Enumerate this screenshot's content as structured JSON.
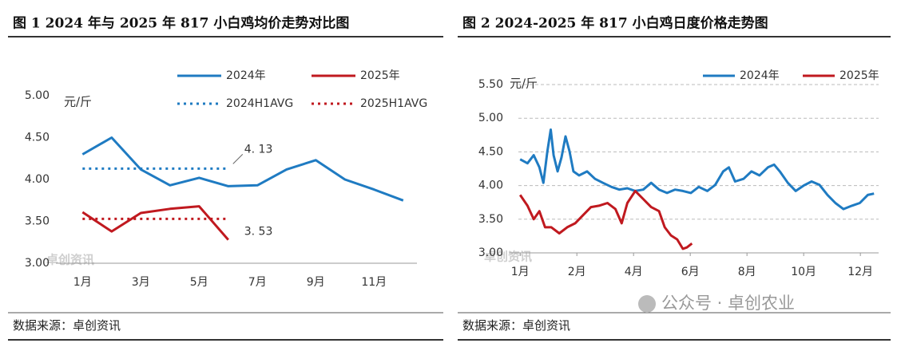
{
  "chart_data": [
    {
      "type": "line",
      "title": "图 1 2024 年与 2025 年 817 小白鸡均价走势对比图",
      "y_label": "元/斤",
      "source": "数据来源：卓创资讯",
      "watermark": "卓创资讯",
      "categories": [
        "1月",
        null,
        "3月",
        null,
        "5月",
        null,
        "7月",
        null,
        "9月",
        null,
        "11月",
        null
      ],
      "series": [
        {
          "name": "2024年",
          "color": "#1f7bc2",
          "style": "solid",
          "values": [
            4.3,
            4.5,
            4.12,
            3.93,
            4.02,
            3.92,
            3.93,
            4.12,
            4.23,
            4.0,
            3.88,
            3.75
          ]
        },
        {
          "name": "2025年",
          "color": "#c0191f",
          "style": "solid",
          "values": [
            3.61,
            3.38,
            3.6,
            3.65,
            3.68,
            3.28,
            null,
            null,
            null,
            null,
            null,
            null
          ]
        },
        {
          "name": "2024H1AVG",
          "color": "#1f7bc2",
          "style": "dotted",
          "values": [
            4.13,
            4.13,
            4.13,
            4.13,
            4.13,
            4.13,
            null,
            null,
            null,
            null,
            null,
            null
          ]
        },
        {
          "name": "2025H1AVG",
          "color": "#c0191f",
          "style": "dotted",
          "values": [
            3.53,
            3.53,
            3.53,
            3.53,
            3.53,
            3.53,
            null,
            null,
            null,
            null,
            null,
            null
          ]
        }
      ],
      "annotations": [
        {
          "text": "4. 13",
          "value": 4.13
        },
        {
          "text": "3. 53",
          "value": 3.53
        }
      ],
      "ylim": [
        3,
        5
      ],
      "yticks": [
        {
          "value": 3,
          "label": "3.00"
        },
        {
          "value": 3.5,
          "label": "3.50"
        },
        {
          "value": 4,
          "label": "4.00"
        },
        {
          "value": 4.5,
          "label": "4.50"
        },
        {
          "value": 5,
          "label": "5.00"
        }
      ],
      "grid": false
    },
    {
      "type": "line",
      "title": "图 2 2024-2025 年 817 小白鸡日度价格走势图",
      "y_label": "元/斤",
      "source": "数据来源：卓创资讯",
      "watermark": "卓创资讯",
      "credit": "公众号 · 卓创农业",
      "series": [
        {
          "name": "2024年",
          "color": "#1f7bc2",
          "style": "solid",
          "x": [
            0,
            0.13,
            0.24,
            0.34,
            0.41,
            0.48,
            0.54,
            0.59,
            0.66,
            0.73,
            0.8,
            0.87,
            0.94,
            1.04,
            1.18,
            1.32,
            1.46,
            1.61,
            1.75,
            1.89,
            2.03,
            2.17,
            2.31,
            2.45,
            2.59,
            2.73,
            2.87,
            3.01,
            3.15,
            3.3,
            3.44,
            3.58,
            3.68,
            3.79,
            3.94,
            4.08,
            4.22,
            4.37,
            4.48,
            4.58,
            4.72,
            4.86,
            5.0,
            5.14,
            5.28,
            5.42,
            5.56,
            5.7,
            5.85,
            5.99,
            6.13,
            6.24
          ],
          "values": [
            4.39,
            4.33,
            4.45,
            4.27,
            4.04,
            4.51,
            4.83,
            4.45,
            4.21,
            4.42,
            4.73,
            4.51,
            4.21,
            4.15,
            4.21,
            4.1,
            4.04,
            3.98,
            3.94,
            3.96,
            3.92,
            3.94,
            4.04,
            3.94,
            3.89,
            3.94,
            3.92,
            3.89,
            3.98,
            3.92,
            4.01,
            4.21,
            4.27,
            4.06,
            4.1,
            4.21,
            4.15,
            4.27,
            4.31,
            4.21,
            4.04,
            3.92,
            4.0,
            4.06,
            4.01,
            3.86,
            3.74,
            3.65,
            3.7,
            3.74,
            3.86,
            3.88
          ]
        },
        {
          "name": "2025年",
          "color": "#c0191f",
          "style": "solid",
          "x": [
            0,
            0.13,
            0.24,
            0.34,
            0.44,
            0.55,
            0.69,
            0.83,
            0.97,
            1.11,
            1.25,
            1.39,
            1.54,
            1.68,
            1.79,
            1.89,
            2.03,
            2.17,
            2.31,
            2.45,
            2.55,
            2.66,
            2.77,
            2.87,
            2.94,
            3.03
          ],
          "values": [
            3.86,
            3.7,
            3.5,
            3.62,
            3.38,
            3.38,
            3.29,
            3.38,
            3.44,
            3.56,
            3.68,
            3.7,
            3.74,
            3.65,
            3.44,
            3.74,
            3.92,
            3.8,
            3.68,
            3.62,
            3.38,
            3.26,
            3.2,
            3.06,
            3.08,
            3.14
          ]
        }
      ],
      "xlim": [
        -0.2,
        6.35
      ],
      "xticks": [
        {
          "value": 0,
          "label": "1月"
        },
        {
          "value": 1,
          "label": "2月"
        },
        {
          "value": 2,
          "label": "4月"
        },
        {
          "value": 3,
          "label": "6月"
        },
        {
          "value": 4,
          "label": "8月"
        },
        {
          "value": 5,
          "label": "10月"
        },
        {
          "value": 6,
          "label": "12月"
        }
      ],
      "ylim": [
        3,
        5.5
      ],
      "yticks": [
        {
          "value": 3,
          "label": "3.00"
        },
        {
          "value": 3.5,
          "label": "3.50"
        },
        {
          "value": 4,
          "label": "4.00"
        },
        {
          "value": 4.5,
          "label": "4.50"
        },
        {
          "value": 5,
          "label": "5.00"
        },
        {
          "value": 5.5,
          "label": "5.50"
        }
      ],
      "grid": true
    }
  ]
}
